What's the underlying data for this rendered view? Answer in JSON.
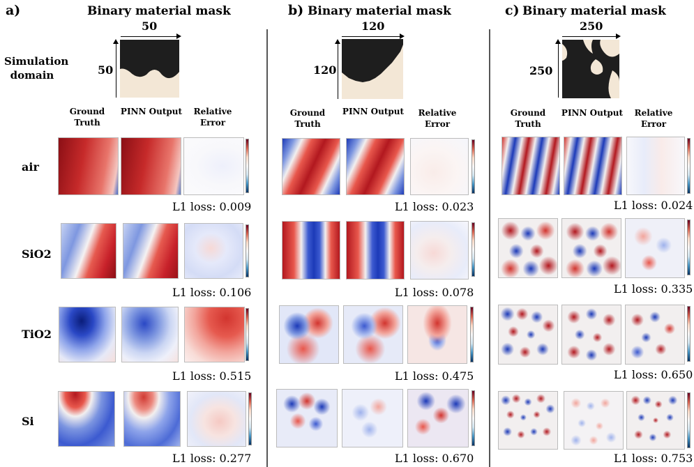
{
  "panels": [
    {
      "letter": "a)",
      "mask_title": "Binary material mask",
      "size": "50",
      "side_label_line1": "Simulation",
      "side_label_line2": "domain",
      "col_heads": [
        "Ground Truth",
        "PINN Output",
        "Relative Error"
      ],
      "losses": [
        "L1 loss: 0.009",
        "L1 loss: 0.106",
        "L1 loss: 0.515",
        "L1 loss: 0.277"
      ]
    },
    {
      "letter": "b)",
      "mask_title": "Binary material mask",
      "size": "120",
      "col_heads": [
        "Ground Truth",
        "PINN Output",
        "Relative Error"
      ],
      "losses": [
        "L1 loss: 0.023",
        "L1 loss: 0.078",
        "L1 loss: 0.475",
        "L1 loss: 0.670"
      ]
    },
    {
      "letter": "c)",
      "mask_title": "Binary material mask",
      "size": "250",
      "col_heads": [
        "Ground Truth",
        "PINN Output",
        "Relative Error"
      ],
      "losses": [
        "L1 loss: 0.024",
        "L1 loss: 0.335",
        "L1 loss: 0.650",
        "L1 loss: 0.753"
      ]
    }
  ],
  "materials": [
    "air",
    "SiO2",
    "TiO2",
    "Si"
  ],
  "colors": {
    "red": "#b2182b",
    "blue": "#2166ac",
    "mask_dark": "#1e1e1e",
    "mask_light": "#f3e7d6"
  }
}
